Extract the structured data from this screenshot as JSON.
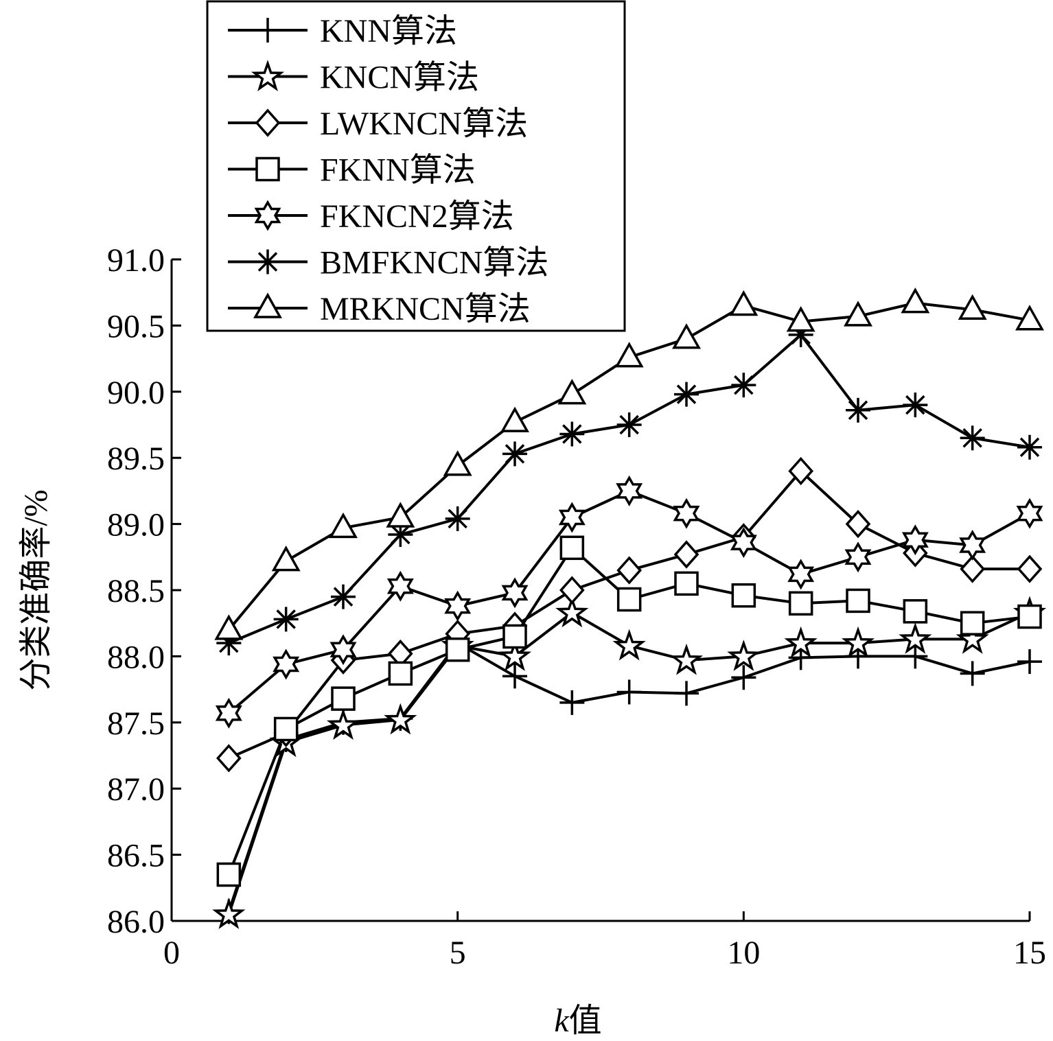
{
  "chart_data": {
    "type": "line",
    "title": "",
    "xlabel_italic": "k",
    "xlabel_rest": "值",
    "ylabel": "分类准确率/%",
    "xlim": [
      0,
      15
    ],
    "ylim": [
      86.0,
      91.0
    ],
    "xticks": [
      "0",
      "5",
      "10",
      "15"
    ],
    "xtick_values": [
      0,
      5,
      10,
      15
    ],
    "yticks": [
      "86.0",
      "86.5",
      "87.0",
      "87.5",
      "88.0",
      "88.5",
      "89.0",
      "89.5",
      "90.0",
      "90.5",
      "91.0"
    ],
    "ytick_values": [
      86.0,
      86.5,
      87.0,
      87.5,
      88.0,
      88.5,
      89.0,
      89.5,
      90.0,
      90.5,
      91.0
    ],
    "grid": false,
    "legend_position": "top-left",
    "x": [
      1,
      2,
      3,
      4,
      5,
      6,
      7,
      8,
      9,
      10,
      11,
      12,
      13,
      14,
      15
    ],
    "series": [
      {
        "name": "KNN算法",
        "marker": "plus",
        "values": [
          86.07,
          87.37,
          87.5,
          87.53,
          88.1,
          87.85,
          87.65,
          87.73,
          87.72,
          87.84,
          87.99,
          88.0,
          88.0,
          87.87,
          87.96
        ]
      },
      {
        "name": "KNCN算法",
        "marker": "star5",
        "values": [
          86.05,
          87.35,
          87.48,
          87.52,
          88.08,
          88.0,
          88.33,
          88.08,
          87.97,
          88.0,
          88.1,
          88.1,
          88.13,
          88.13,
          88.33
        ]
      },
      {
        "name": "LWKNCN算法",
        "marker": "diamond",
        "values": [
          87.23,
          87.42,
          87.97,
          88.02,
          88.17,
          88.23,
          88.5,
          88.65,
          88.77,
          88.9,
          89.4,
          89.0,
          88.78,
          88.66,
          88.66
        ]
      },
      {
        "name": "FKNN算法",
        "marker": "square",
        "values": [
          86.35,
          87.45,
          87.68,
          87.87,
          88.05,
          88.15,
          88.82,
          88.43,
          88.55,
          88.46,
          88.4,
          88.42,
          88.34,
          88.25,
          88.3
        ]
      },
      {
        "name": "FKNCN2算法",
        "marker": "star6",
        "values": [
          87.57,
          87.94,
          88.05,
          88.53,
          88.38,
          88.48,
          89.05,
          89.25,
          89.08,
          88.86,
          88.62,
          88.75,
          88.88,
          88.84,
          89.08
        ]
      },
      {
        "name": "BMFKNCN算法",
        "marker": "asterisk",
        "values": [
          88.1,
          88.28,
          88.45,
          88.92,
          89.04,
          89.53,
          89.68,
          89.75,
          89.98,
          90.05,
          90.43,
          89.86,
          89.9,
          89.65,
          89.58
        ]
      },
      {
        "name": "MRKNCN算法",
        "marker": "triangle",
        "values": [
          88.2,
          88.72,
          88.97,
          89.05,
          89.44,
          89.77,
          89.98,
          90.26,
          90.4,
          90.65,
          90.53,
          90.57,
          90.67,
          90.62,
          90.54
        ]
      }
    ]
  }
}
